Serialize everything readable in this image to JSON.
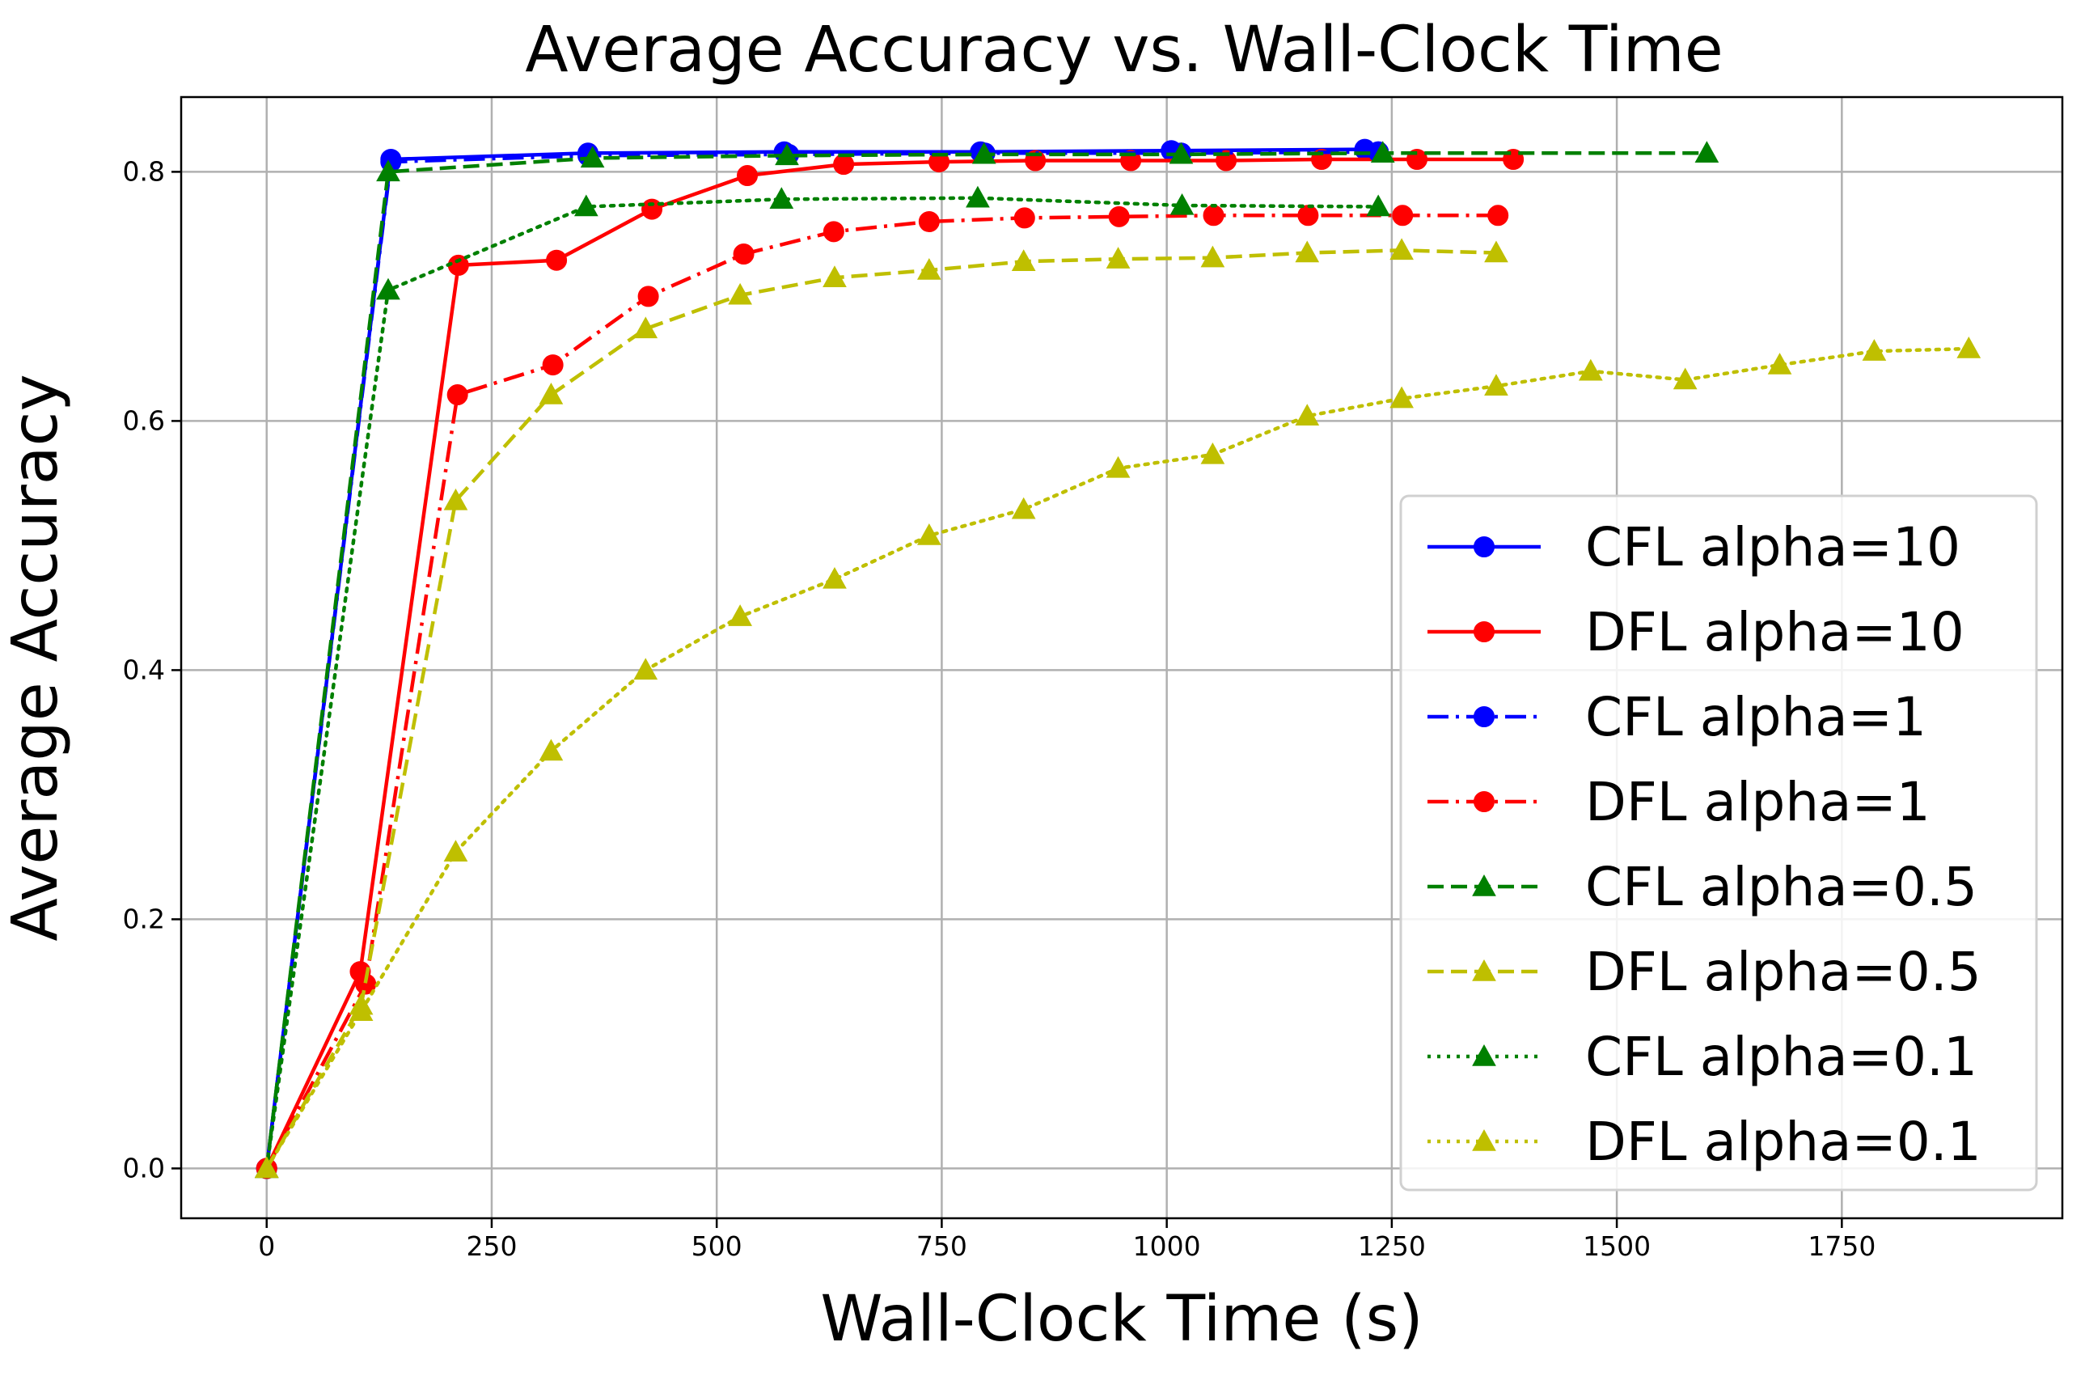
{
  "chart_data": {
    "type": "line",
    "title": "Average Accuracy vs. Wall-Clock Time",
    "xlabel": "Wall-Clock Time (s)",
    "ylabel": "Average Accuracy",
    "xlim": [
      -95,
      1995
    ],
    "ylim": [
      -0.04,
      0.86
    ],
    "xticks": [
      0,
      250,
      500,
      750,
      1000,
      1250,
      1500,
      1750
    ],
    "yticks": [
      0.0,
      0.2,
      0.4,
      0.6,
      0.8
    ],
    "grid": true,
    "legend_position": "lower-right",
    "series": [
      {
        "name": "CFL alpha=10",
        "color": "#0000ff",
        "marker": "circle",
        "linestyle": "solid",
        "x": [
          0,
          138,
          357,
          575,
          793,
          1005,
          1220,
          1235
        ],
        "y": [
          0.0,
          0.81,
          0.815,
          0.816,
          0.816,
          0.817,
          0.818,
          0.816
        ]
      },
      {
        "name": "DFL alpha=10",
        "color": "#ff0000",
        "marker": "circle",
        "linestyle": "solid",
        "x": [
          0,
          104,
          213,
          322,
          428,
          534,
          641,
          747,
          854,
          960,
          1066,
          1172,
          1278,
          1385
        ],
        "y": [
          0.0,
          0.158,
          0.725,
          0.729,
          0.77,
          0.797,
          0.806,
          0.808,
          0.809,
          0.809,
          0.809,
          0.81,
          0.81,
          0.81
        ]
      },
      {
        "name": "CFL alpha=1",
        "color": "#0000ff",
        "marker": "circle",
        "linestyle": "dashdot",
        "x": [
          0,
          138,
          357,
          580,
          798,
          1016,
          1235
        ],
        "y": [
          0.0,
          0.808,
          0.813,
          0.814,
          0.815,
          0.815,
          0.816
        ]
      },
      {
        "name": "DFL alpha=1",
        "color": "#ff0000",
        "marker": "circle",
        "linestyle": "dashdot",
        "x": [
          0,
          110,
          212,
          318,
          424,
          530,
          630,
          736,
          842,
          947,
          1052,
          1157,
          1262,
          1368
        ],
        "y": [
          0.0,
          0.148,
          0.621,
          0.645,
          0.7,
          0.734,
          0.752,
          0.76,
          0.763,
          0.764,
          0.765,
          0.765,
          0.765,
          0.765
        ]
      },
      {
        "name": "CFL alpha=0.5",
        "color": "#008000",
        "marker": "triangle",
        "linestyle": "dashed",
        "x": [
          0,
          135,
          362,
          578,
          797,
          1016,
          1240,
          1600
        ],
        "y": [
          0.0,
          0.8,
          0.811,
          0.813,
          0.814,
          0.814,
          0.815,
          0.815
        ]
      },
      {
        "name": "DFL alpha=0.5",
        "color": "#bfbf00",
        "marker": "triangle",
        "linestyle": "dashed",
        "x": [
          0,
          105,
          210,
          316,
          421,
          526,
          631,
          736,
          841,
          946,
          1051,
          1156,
          1261,
          1366
        ],
        "y": [
          0.0,
          0.131,
          0.536,
          0.621,
          0.674,
          0.701,
          0.715,
          0.721,
          0.728,
          0.73,
          0.731,
          0.735,
          0.737,
          0.735
        ]
      },
      {
        "name": "CFL alpha=0.1",
        "color": "#008000",
        "marker": "triangle",
        "linestyle": "dotted",
        "x": [
          0,
          135,
          355,
          572,
          790,
          1017,
          1235
        ],
        "y": [
          0.0,
          0.705,
          0.772,
          0.778,
          0.779,
          0.773,
          0.772
        ]
      },
      {
        "name": "DFL alpha=0.1",
        "color": "#bfbf00",
        "marker": "triangle",
        "linestyle": "dotted",
        "x": [
          0,
          105,
          210,
          316,
          421,
          526,
          631,
          736,
          841,
          946,
          1051,
          1156,
          1261,
          1366,
          1471,
          1576,
          1681,
          1786,
          1891
        ],
        "y": [
          0.0,
          0.126,
          0.254,
          0.335,
          0.4,
          0.443,
          0.473,
          0.508,
          0.529,
          0.562,
          0.573,
          0.604,
          0.618,
          0.628,
          0.64,
          0.633,
          0.645,
          0.656,
          0.658
        ]
      }
    ]
  }
}
